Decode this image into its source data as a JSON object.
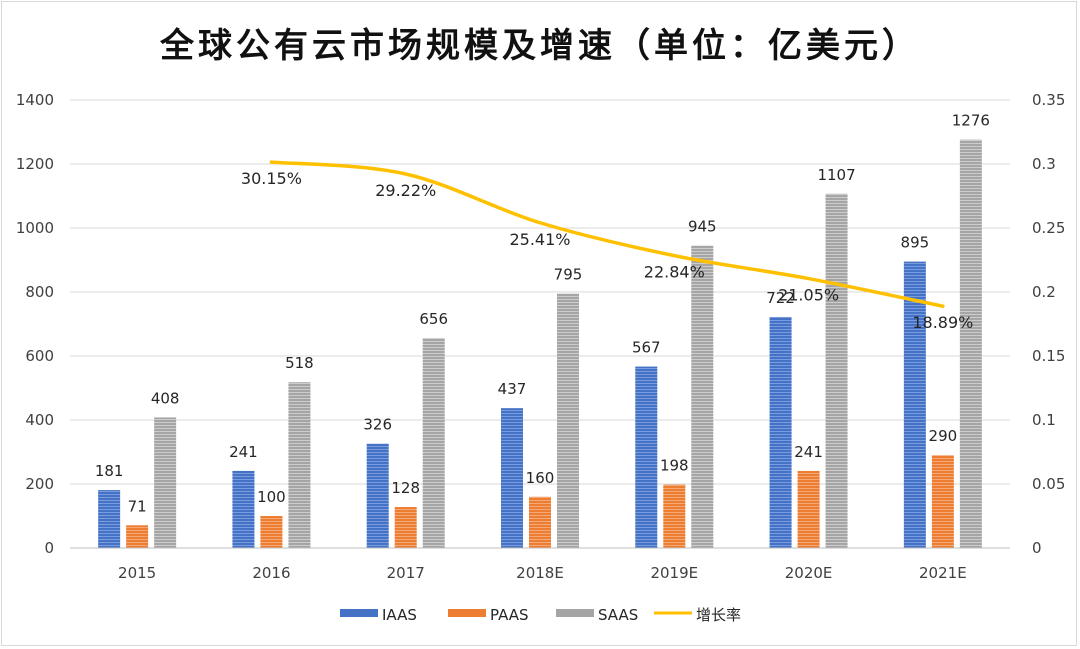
{
  "chart_data": {
    "type": "bar",
    "title": "全球公有云市场规模及增速（单位：亿美元）",
    "categories": [
      "2015",
      "2016",
      "2017",
      "2018E",
      "2019E",
      "2020E",
      "2021E"
    ],
    "series": [
      {
        "name": "IAAS",
        "values": [
          181,
          241,
          326,
          437,
          567,
          722,
          895
        ],
        "color": "#4472c4"
      },
      {
        "name": "PAAS",
        "values": [
          71,
          100,
          128,
          160,
          198,
          241,
          290
        ],
        "color": "#ed7d31"
      },
      {
        "name": "SAAS",
        "values": [
          408,
          518,
          656,
          795,
          945,
          1107,
          1276
        ],
        "color": "#a5a5a5"
      }
    ],
    "line_series": {
      "name": "增长率",
      "axis": "right",
      "color": "#ffc000",
      "x": [
        "2016",
        "2017",
        "2018E",
        "2019E",
        "2020E",
        "2021E"
      ],
      "values": [
        0.3015,
        0.2922,
        0.2541,
        0.2284,
        0.2105,
        0.1889
      ],
      "labels": [
        "30.15%",
        "29.22%",
        "25.41%",
        "22.84%",
        "21.05%",
        "18.89%"
      ]
    },
    "y_left": {
      "min": 0,
      "max": 1400,
      "ticks": [
        "0",
        "200",
        "400",
        "600",
        "800",
        "1000",
        "1200",
        "1400"
      ]
    },
    "y_right": {
      "min": 0,
      "max": 0.35,
      "ticks": [
        "0",
        "0.05",
        "0.1",
        "0.15",
        "0.2",
        "0.25",
        "0.3",
        "0.35"
      ]
    },
    "grid": true,
    "legend": {
      "position": "bottom",
      "items": [
        "IAAS",
        "PAAS",
        "SAAS",
        "增长率"
      ]
    }
  }
}
